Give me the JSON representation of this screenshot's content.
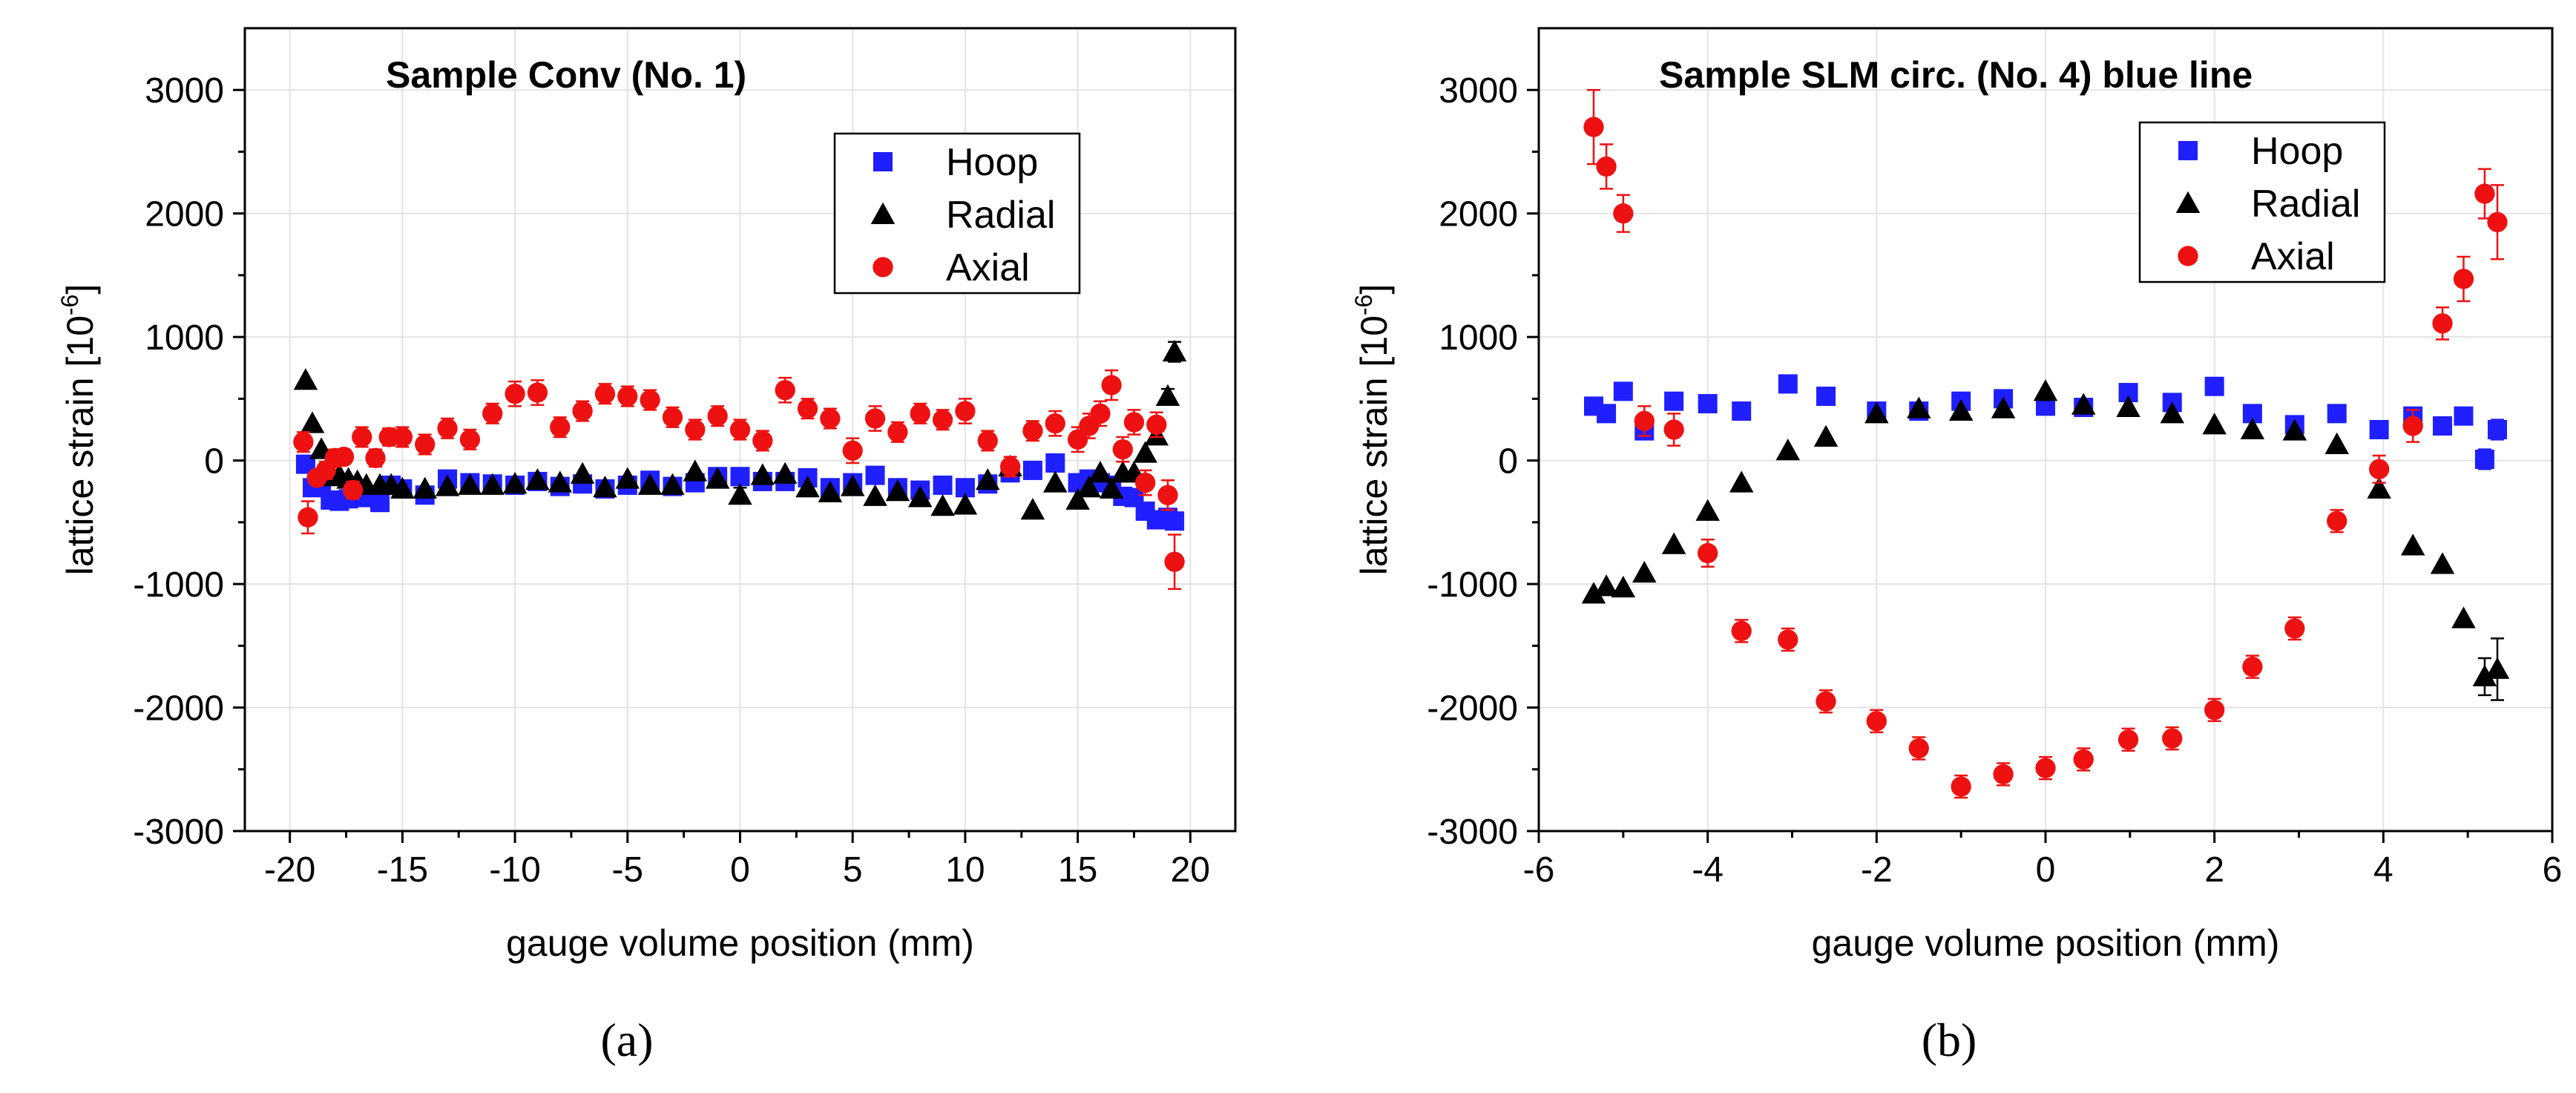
{
  "charts": [
    {
      "panel_label": "(a)",
      "chart_data": {
        "type": "scatter",
        "title": "Sample Conv (No. 1)",
        "xlabel": "gauge volume position (mm)",
        "ylabel_base": "lattice strain [10",
        "ylabel_exp": "-6",
        "ylabel_close": "]",
        "xlim": [
          -22,
          22
        ],
        "ylim": [
          -3000,
          3500
        ],
        "xticks": [
          -20,
          -15,
          -10,
          -5,
          0,
          5,
          10,
          15,
          20
        ],
        "yticks": [
          -3000,
          -2000,
          -1000,
          0,
          1000,
          2000,
          3000
        ],
        "grid": true,
        "legend_position": "top-right",
        "series": [
          {
            "name": "Hoop",
            "marker": "square",
            "color": "#1f1fff",
            "x": [
              -19.3,
              -19,
              -18.6,
              -18.2,
              -17.8,
              -17.4,
              -17,
              -16.6,
              -16,
              -15.5,
              -15,
              -14,
              -13,
              -12,
              -11,
              -10,
              -9,
              -8,
              -7,
              -6,
              -5,
              -4,
              -3,
              -2,
              -1,
              0,
              1,
              2,
              3,
              4,
              5,
              6,
              7,
              8,
              9,
              10,
              11,
              12,
              13,
              14,
              15,
              15.5,
              16,
              16.5,
              17,
              17.5,
              18,
              18.5,
              19,
              19.3
            ],
            "y": [
              -30,
              -220,
              -200,
              -320,
              -330,
              -310,
              -260,
              -300,
              -340,
              -200,
              -230,
              -280,
              -150,
              -180,
              -190,
              -200,
              -170,
              -210,
              -190,
              -230,
              -200,
              -160,
              -210,
              -180,
              -130,
              -130,
              -170,
              -170,
              -140,
              -220,
              -180,
              -120,
              -220,
              -240,
              -200,
              -220,
              -190,
              -100,
              -80,
              -20,
              -180,
              -150,
              -180,
              -200,
              -290,
              -300,
              -410,
              -480,
              -460,
              -490
            ],
            "err": [
              0,
              0,
              0,
              0,
              0,
              0,
              0,
              0,
              0,
              0,
              0,
              0,
              0,
              0,
              0,
              0,
              0,
              0,
              0,
              0,
              0,
              0,
              0,
              0,
              0,
              0,
              0,
              0,
              0,
              0,
              0,
              0,
              0,
              0,
              0,
              0,
              0,
              0,
              0,
              0,
              0,
              0,
              0,
              0,
              0,
              0,
              0,
              0,
              0,
              0
            ]
          },
          {
            "name": "Radial",
            "marker": "triangle",
            "color": "#000000",
            "x": [
              -19.3,
              -19,
              -18.6,
              -18.2,
              -17.8,
              -17.4,
              -17,
              -16.6,
              -16,
              -15.5,
              -15,
              -14,
              -13,
              -12,
              -11,
              -10,
              -9,
              -8,
              -7,
              -6,
              -5,
              -4,
              -3,
              -2,
              -1,
              0,
              1,
              2,
              3,
              4,
              5,
              6,
              7,
              8,
              9,
              10,
              11,
              12,
              13,
              14,
              15,
              15.5,
              16,
              16.5,
              17,
              17.5,
              18,
              18.5,
              19,
              19.3
            ],
            "y": [
              650,
              300,
              90,
              -130,
              -120,
              -150,
              -170,
              -200,
              -200,
              -200,
              -230,
              -230,
              -210,
              -200,
              -200,
              -190,
              -160,
              -180,
              -110,
              -220,
              -150,
              -200,
              -200,
              -90,
              -150,
              -280,
              -120,
              -110,
              -220,
              -260,
              -210,
              -290,
              -250,
              -300,
              -370,
              -360,
              -160,
              -50,
              -400,
              -180,
              -320,
              -220,
              -100,
              -230,
              -100,
              -100,
              60,
              200,
              520,
              880
            ],
            "err": [
              0,
              0,
              0,
              0,
              0,
              0,
              0,
              0,
              0,
              0,
              0,
              0,
              0,
              0,
              0,
              0,
              0,
              0,
              0,
              0,
              0,
              0,
              0,
              0,
              0,
              60,
              0,
              0,
              0,
              0,
              0,
              0,
              0,
              0,
              0,
              0,
              0,
              0,
              0,
              0,
              0,
              0,
              0,
              0,
              0,
              0,
              0,
              0,
              60,
              80
            ]
          },
          {
            "name": "Axial",
            "marker": "circle",
            "color": "#ee1111",
            "x": [
              -19.4,
              -19.2,
              -18.8,
              -18.4,
              -18,
              -17.6,
              -17.2,
              -16.8,
              -16.2,
              -15.6,
              -15,
              -14,
              -13,
              -12,
              -11,
              -10,
              -9,
              -8,
              -7,
              -6,
              -5,
              -4,
              -3,
              -2,
              -1,
              0,
              1,
              2,
              3,
              4,
              5,
              6,
              7,
              8,
              9,
              10,
              11,
              12,
              13,
              14,
              15,
              15.5,
              16,
              16.5,
              17,
              17.5,
              18,
              18.5,
              19,
              19.3
            ],
            "y": [
              150,
              -460,
              -140,
              -80,
              20,
              30,
              -240,
              190,
              20,
              190,
              190,
              130,
              260,
              170,
              380,
              540,
              550,
              270,
              400,
              540,
              520,
              490,
              350,
              250,
              360,
              250,
              160,
              570,
              420,
              340,
              80,
              340,
              230,
              380,
              330,
              400,
              160,
              -50,
              240,
              300,
              170,
              280,
              380,
              610,
              90,
              310,
              -180,
              290,
              -280,
              -820
            ],
            "err": [
              80,
              130,
              60,
              70,
              70,
              60,
              70,
              80,
              70,
              70,
              80,
              80,
              80,
              80,
              80,
              100,
              100,
              80,
              80,
              80,
              80,
              80,
              80,
              80,
              80,
              80,
              80,
              100,
              80,
              80,
              100,
              100,
              80,
              80,
              80,
              100,
              80,
              80,
              80,
              100,
              100,
              100,
              100,
              120,
              100,
              100,
              100,
              100,
              120,
              220
            ]
          }
        ]
      }
    },
    {
      "panel_label": "(b)",
      "chart_data": {
        "type": "scatter",
        "title": "Sample SLM circ. (No. 4) blue line",
        "xlabel": "gauge volume position (mm)",
        "ylabel_base": "lattice strain [10",
        "ylabel_exp": "-6",
        "ylabel_close": "]",
        "xlim": [
          -6,
          6
        ],
        "ylim": [
          -3000,
          3500
        ],
        "xticks": [
          -6,
          -4,
          -2,
          0,
          2,
          4,
          6
        ],
        "yticks": [
          -3000,
          -2000,
          -1000,
          0,
          1000,
          2000,
          3000
        ],
        "grid": true,
        "legend_position": "top-right",
        "series": [
          {
            "name": "Hoop",
            "marker": "square",
            "color": "#1f1fff",
            "x": [
              -5.35,
              -5.2,
              -5,
              -4.75,
              -4.4,
              -4,
              -3.6,
              -3.05,
              -2.6,
              -2,
              -1.5,
              -1,
              -0.5,
              0,
              0.45,
              0.98,
              1.5,
              2,
              2.45,
              2.95,
              3.45,
              3.95,
              4.35,
              4.7,
              4.95,
              5.2,
              5.35
            ],
            "y": [
              440,
              380,
              560,
              240,
              480,
              460,
              400,
              620,
              520,
              400,
              400,
              480,
              500,
              440,
              430,
              550,
              470,
              600,
              380,
              290,
              380,
              250,
              360,
              280,
              360,
              10,
              250
            ],
            "err": [
              0,
              0,
              0,
              0,
              0,
              0,
              0,
              0,
              0,
              0,
              0,
              0,
              0,
              0,
              0,
              0,
              0,
              0,
              0,
              0,
              0,
              0,
              0,
              0,
              0,
              80,
              80
            ]
          },
          {
            "name": "Radial",
            "marker": "triangle",
            "color": "#000000",
            "x": [
              -5.35,
              -5.2,
              -5,
              -4.75,
              -4.4,
              -4,
              -3.6,
              -3.05,
              -2.6,
              -2,
              -1.5,
              -1,
              -0.5,
              0,
              0.45,
              0.98,
              1.5,
              2,
              2.45,
              2.95,
              3.45,
              3.95,
              4.35,
              4.7,
              4.95,
              5.2,
              5.35
            ],
            "y": [
              -1080,
              -1020,
              -1030,
              -910,
              -680,
              -410,
              -180,
              80,
              190,
              380,
              420,
              400,
              420,
              560,
              450,
              430,
              380,
              290,
              250,
              240,
              130,
              -230,
              -690,
              -840,
              -1280,
              -1750,
              -1690
            ],
            "err": [
              0,
              0,
              0,
              0,
              0,
              0,
              0,
              0,
              0,
              0,
              0,
              0,
              0,
              0,
              0,
              0,
              0,
              0,
              0,
              0,
              0,
              0,
              0,
              0,
              0,
              150,
              250
            ]
          },
          {
            "name": "Axial",
            "marker": "circle",
            "color": "#ee1111",
            "x": [
              -5.35,
              -5.2,
              -5,
              -4.75,
              -4.4,
              -4,
              -3.6,
              -3.05,
              -2.6,
              -2,
              -1.5,
              -1,
              -0.5,
              0,
              0.45,
              0.98,
              1.5,
              2,
              2.45,
              2.95,
              3.45,
              3.95,
              4.35,
              4.7,
              4.95,
              5.2,
              5.35
            ],
            "y": [
              2700,
              2380,
              2000,
              320,
              250,
              -750,
              -1380,
              -1450,
              -1950,
              -2110,
              -2330,
              -2640,
              -2540,
              -2490,
              -2420,
              -2260,
              -2250,
              -2020,
              -1670,
              -1360,
              -490,
              -70,
              280,
              1110,
              1470,
              2160,
              1930
            ],
            "err": [
              300,
              180,
              150,
              120,
              130,
              110,
              90,
              90,
              90,
              90,
              90,
              90,
              90,
              90,
              90,
              90,
              90,
              90,
              90,
              90,
              90,
              110,
              130,
              130,
              180,
              200,
              300
            ]
          }
        ]
      }
    }
  ]
}
